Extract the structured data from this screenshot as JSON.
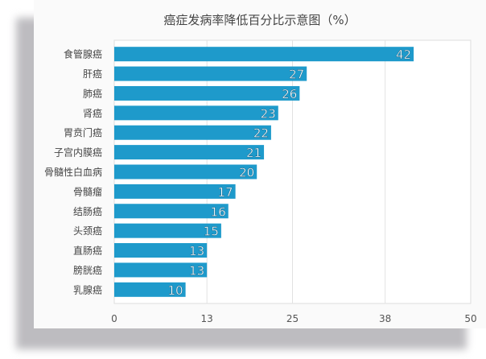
{
  "chart_data": {
    "type": "bar",
    "orientation": "horizontal",
    "title": "癌症发病率降低百分比示意图（%）",
    "categories": [
      "食管腺癌",
      "肝癌",
      "肺癌",
      "肾癌",
      "胃贲门癌",
      "子宫内膜癌",
      "骨髓性白血病",
      "骨髓瘤",
      "结肠癌",
      "头颈癌",
      "直肠癌",
      "膀胱癌",
      "乳腺癌"
    ],
    "values": [
      42,
      27,
      26,
      23,
      22,
      21,
      20,
      17,
      16,
      15,
      13,
      13,
      10
    ],
    "xlim": [
      0,
      50
    ],
    "xticks": [
      "0",
      "13",
      "25",
      "38",
      "50"
    ],
    "grid": true,
    "bar_color": "#1e9acb"
  }
}
